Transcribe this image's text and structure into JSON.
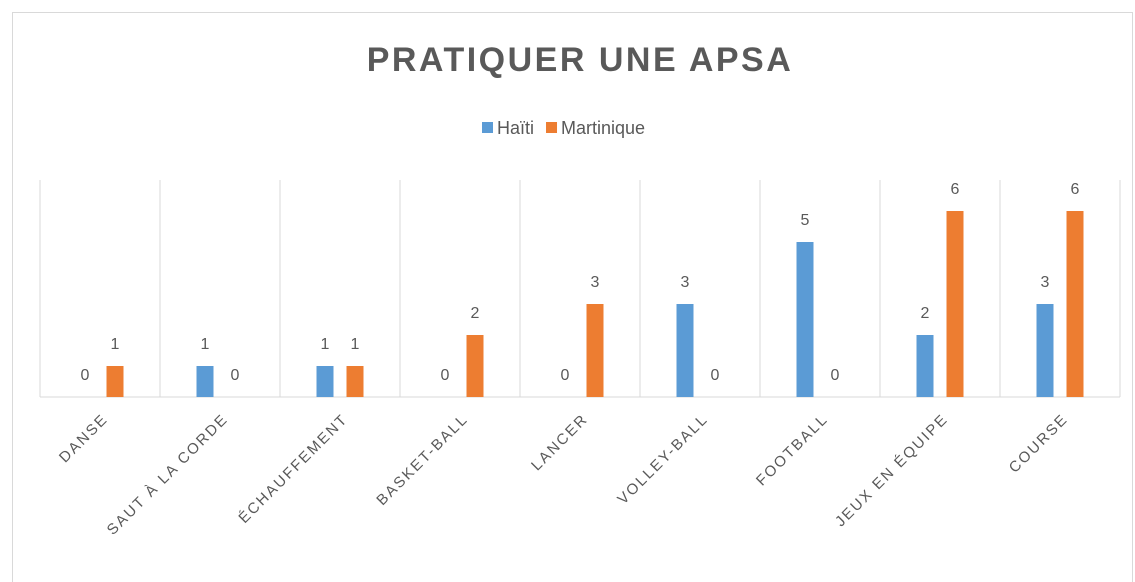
{
  "chart_data": {
    "type": "bar",
    "title": "PRATIQUER UNE APSA",
    "categories": [
      "DANSE",
      "SAUT À LA CORDE",
      "ÉCHAUFFEMENT",
      "BASKET-BALL",
      "LANCER",
      "VOLLEY-BALL",
      "FOOTBALL",
      "JEUX EN ÉQUIPE",
      "COURSE"
    ],
    "series": [
      {
        "name": "Haïti",
        "color": "#5b9bd5",
        "values": [
          0,
          1,
          1,
          0,
          0,
          3,
          5,
          2,
          3
        ]
      },
      {
        "name": "Martinique",
        "color": "#ed7d31",
        "values": [
          1,
          0,
          1,
          2,
          3,
          0,
          0,
          6,
          6
        ]
      }
    ],
    "ylim": [
      0,
      7
    ],
    "legend": "top"
  }
}
